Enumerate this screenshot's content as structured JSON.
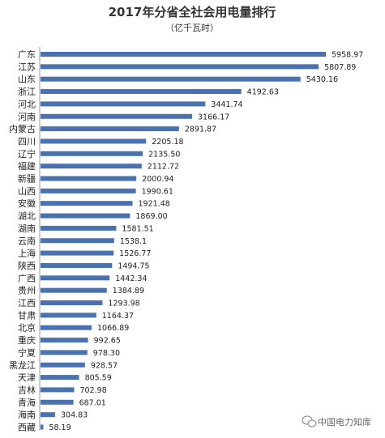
{
  "chart_data": {
    "type": "bar",
    "orientation": "horizontal",
    "title": "2017年分省全社会用电量排行",
    "subtitle": "（亿千瓦时）",
    "categories": [
      "广东",
      "江苏",
      "山东",
      "浙江",
      "河北",
      "河南",
      "内蒙古",
      "四川",
      "辽宁",
      "福建",
      "新疆",
      "山西",
      "安徽",
      "湖北",
      "湖南",
      "云南",
      "上海",
      "陕西",
      "广西",
      "贵州",
      "江西",
      "甘肃",
      "北京",
      "重庆",
      "宁夏",
      "黑龙江",
      "天津",
      "吉林",
      "青海",
      "海南",
      "西藏"
    ],
    "value_labels": [
      "5958.97",
      "5807.89",
      "5430.16",
      "4192.63",
      "3441.74",
      "3166.17",
      "2891.87",
      "2205.18",
      "2135.50",
      "2112.72",
      "2000.94",
      "1990.61",
      "1921.48",
      "1869.00",
      "1581.51",
      "1538.1",
      "1526.77",
      "1494.75",
      "1442.34",
      "1384.89",
      "1293.98",
      "1164.37",
      "1066.89",
      "992.65",
      "978.30",
      "928.57",
      "805.59",
      "702.98",
      "687.01",
      "304.83",
      "58.19"
    ],
    "values": [
      5958.97,
      5807.89,
      5430.16,
      4192.63,
      3441.74,
      3166.17,
      2891.87,
      2205.18,
      2135.5,
      2112.72,
      2000.94,
      1990.61,
      1921.48,
      1869.0,
      1581.51,
      1538.1,
      1526.77,
      1494.75,
      1442.34,
      1384.89,
      1293.98,
      1164.37,
      1066.89,
      992.65,
      978.3,
      928.57,
      805.59,
      702.98,
      687.01,
      304.83,
      58.19
    ],
    "bar_color": "#4a72b0",
    "grid": false,
    "legend": "none"
  },
  "watermark": {
    "text": "中国电力知库",
    "icon": "wechat-icon"
  }
}
